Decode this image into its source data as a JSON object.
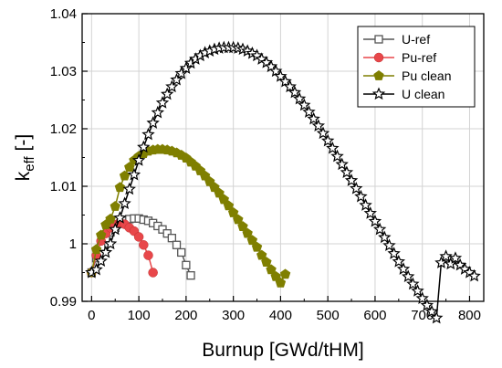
{
  "chart_data": {
    "type": "line",
    "xlabel": "Burnup [GWd/tHM]",
    "ylabel_main": "k",
    "ylabel_sub": "eff",
    "ylabel_unit": " [-]",
    "xlim": [
      -20,
      830
    ],
    "ylim": [
      0.99,
      1.04
    ],
    "x_ticks": [
      0,
      100,
      200,
      300,
      400,
      500,
      600,
      700,
      800
    ],
    "y_ticks": [
      0.99,
      1,
      1.01,
      1.02,
      1.03,
      1.04
    ],
    "x_tick_labels": [
      "0",
      "100",
      "200",
      "300",
      "400",
      "500",
      "600",
      "700",
      "800"
    ],
    "y_tick_labels": [
      "0.99",
      "1",
      "1.01",
      "1.02",
      "1.03",
      "1.04"
    ],
    "grid": true,
    "legend_position": "top-right",
    "series": [
      {
        "name": "U-ref",
        "color": "#555555",
        "marker": "square-open",
        "points": [
          [
            0,
            0.995
          ],
          [
            10,
            0.9975
          ],
          [
            20,
            0.9995
          ],
          [
            30,
            1.001
          ],
          [
            40,
            1.002
          ],
          [
            50,
            1.0028
          ],
          [
            60,
            1.0035
          ],
          [
            70,
            1.004
          ],
          [
            80,
            1.0043
          ],
          [
            90,
            1.0044
          ],
          [
            100,
            1.0044
          ],
          [
            110,
            1.0042
          ],
          [
            120,
            1.004
          ],
          [
            130,
            1.0036
          ],
          [
            140,
            1.0031
          ],
          [
            150,
            1.0025
          ],
          [
            160,
            1.0018
          ],
          [
            170,
            1.001
          ],
          [
            180,
            0.9998
          ],
          [
            190,
            0.9985
          ],
          [
            200,
            0.9963
          ],
          [
            210,
            0.9945
          ]
        ]
      },
      {
        "name": "Pu-ref",
        "color": "#e8474a",
        "marker": "circle-filled",
        "points": [
          [
            0,
            0.995
          ],
          [
            10,
            0.998
          ],
          [
            20,
            1.0005
          ],
          [
            30,
            1.0018
          ],
          [
            40,
            1.0028
          ],
          [
            50,
            1.0033
          ],
          [
            60,
            1.0037
          ],
          [
            70,
            1.0034
          ],
          [
            80,
            1.0028
          ],
          [
            90,
            1.0022
          ],
          [
            100,
            1.0012
          ],
          [
            110,
            0.9998
          ],
          [
            120,
            0.998
          ],
          [
            130,
            0.995
          ]
        ]
      },
      {
        "name": "Pu clean",
        "color": "#7f7f00",
        "marker": "pentagon-filled",
        "points": [
          [
            0,
            0.995
          ],
          [
            10,
            0.999
          ],
          [
            20,
            1.0015
          ],
          [
            30,
            1.0033
          ],
          [
            40,
            1.0043
          ],
          [
            50,
            1.0065
          ],
          [
            60,
            1.0098
          ],
          [
            70,
            1.0118
          ],
          [
            80,
            1.0133
          ],
          [
            90,
            1.0145
          ],
          [
            100,
            1.0152
          ],
          [
            110,
            1.0157
          ],
          [
            120,
            1.0161
          ],
          [
            130,
            1.0163
          ],
          [
            140,
            1.0164
          ],
          [
            150,
            1.0164
          ],
          [
            160,
            1.0163
          ],
          [
            170,
            1.0161
          ],
          [
            180,
            1.0158
          ],
          [
            190,
            1.0154
          ],
          [
            200,
            1.0149
          ],
          [
            210,
            1.0142
          ],
          [
            220,
            1.0135
          ],
          [
            230,
            1.0127
          ],
          [
            240,
            1.0118
          ],
          [
            250,
            1.0108
          ],
          [
            260,
            1.0098
          ],
          [
            270,
            1.0088
          ],
          [
            280,
            1.0077
          ],
          [
            290,
            1.0066
          ],
          [
            300,
            1.0054
          ],
          [
            310,
            1.0042
          ],
          [
            320,
            1.003
          ],
          [
            330,
            1.0018
          ],
          [
            340,
            1.0006
          ],
          [
            350,
            0.9994
          ],
          [
            360,
            0.998
          ],
          [
            370,
            0.9968
          ],
          [
            380,
            0.9955
          ],
          [
            390,
            0.9943
          ],
          [
            400,
            0.9932
          ],
          [
            410,
            0.9947
          ]
        ]
      },
      {
        "name": "U clean",
        "color": "#000000",
        "marker": "star-open",
        "points": [
          [
            0,
            0.995
          ],
          [
            10,
            0.9955
          ],
          [
            20,
            0.997
          ],
          [
            30,
            0.9985
          ],
          [
            40,
            1.0
          ],
          [
            50,
            1.0025
          ],
          [
            60,
            1.0045
          ],
          [
            70,
            1.007
          ],
          [
            80,
            1.0095
          ],
          [
            90,
            1.012
          ],
          [
            100,
            1.0145
          ],
          [
            110,
            1.0168
          ],
          [
            120,
            1.019
          ],
          [
            130,
            1.021
          ],
          [
            140,
            1.0228
          ],
          [
            150,
            1.0245
          ],
          [
            160,
            1.026
          ],
          [
            170,
            1.0273
          ],
          [
            180,
            1.0285
          ],
          [
            190,
            1.0296
          ],
          [
            200,
            1.0305
          ],
          [
            210,
            1.0314
          ],
          [
            220,
            1.0321
          ],
          [
            230,
            1.0327
          ],
          [
            240,
            1.0332
          ],
          [
            250,
            1.0335
          ],
          [
            260,
            1.0338
          ],
          [
            270,
            1.034
          ],
          [
            280,
            1.0341
          ],
          [
            290,
            1.0341
          ],
          [
            300,
            1.0341
          ],
          [
            310,
            1.034
          ],
          [
            320,
            1.0338
          ],
          [
            330,
            1.0335
          ],
          [
            340,
            1.0331
          ],
          [
            350,
            1.0327
          ],
          [
            360,
            1.0321
          ],
          [
            370,
            1.0315
          ],
          [
            380,
            1.0308
          ],
          [
            390,
            1.03
          ],
          [
            400,
            1.0291
          ],
          [
            410,
            1.0282
          ],
          [
            420,
            1.0273
          ],
          [
            430,
            1.0263
          ],
          [
            440,
            1.0252
          ],
          [
            450,
            1.0241
          ],
          [
            460,
            1.0229
          ],
          [
            470,
            1.0217
          ],
          [
            480,
            1.0205
          ],
          [
            490,
            1.0192
          ],
          [
            500,
            1.0179
          ],
          [
            510,
            1.0166
          ],
          [
            520,
            1.0152
          ],
          [
            530,
            1.0138
          ],
          [
            540,
            1.0124
          ],
          [
            550,
            1.011
          ],
          [
            560,
            1.0096
          ],
          [
            570,
            1.0082
          ],
          [
            580,
            1.0067
          ],
          [
            590,
            1.0053
          ],
          [
            600,
            1.0039
          ],
          [
            610,
            1.0025
          ],
          [
            620,
            1.0011
          ],
          [
            630,
            0.9997
          ],
          [
            640,
            0.9983
          ],
          [
            650,
            0.9969
          ],
          [
            660,
            0.9956
          ],
          [
            670,
            0.9943
          ],
          [
            680,
            0.993
          ],
          [
            690,
            0.9918
          ],
          [
            700,
            0.9905
          ],
          [
            710,
            0.9893
          ],
          [
            720,
            0.9882
          ],
          [
            730,
            0.9871
          ],
          [
            740,
            0.9967
          ],
          [
            750,
            0.9978
          ],
          [
            760,
            0.9965
          ],
          [
            770,
            0.9975
          ],
          [
            780,
            0.9963
          ],
          [
            790,
            0.9956
          ],
          [
            800,
            0.995
          ],
          [
            810,
            0.9944
          ]
        ]
      }
    ]
  }
}
